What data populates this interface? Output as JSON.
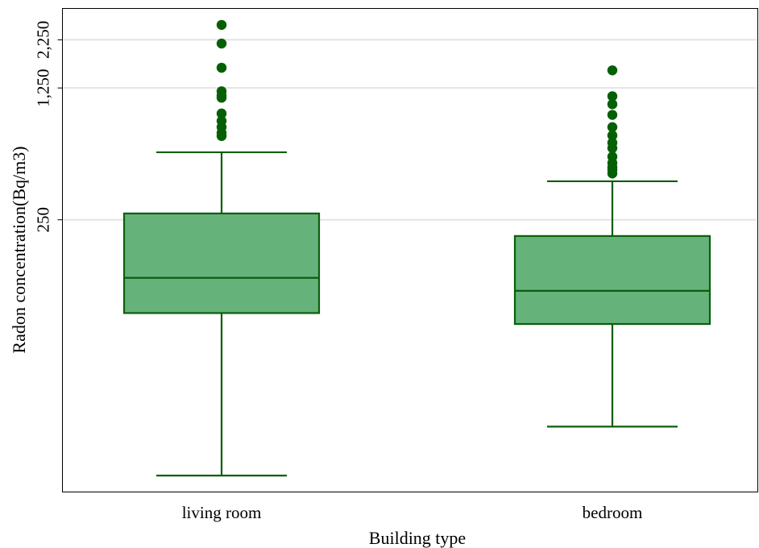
{
  "chart_data": {
    "type": "boxplot",
    "xlabel": "Building type",
    "ylabel": "Radon concentration(Bq/m3)",
    "yscale": "log",
    "ylim": [
      9,
      3300
    ],
    "yticks": [
      {
        "value": 250,
        "label": "250"
      },
      {
        "value": 1250,
        "label": "1,250"
      },
      {
        "value": 2250,
        "label": "2,250"
      }
    ],
    "grid": true,
    "colors": {
      "box_fill": "#66b27b",
      "box_stroke": "#0b5e0b",
      "outlier": "#056005",
      "gridline": "#e4e4e4"
    },
    "categories": [
      "living room",
      "bedroom"
    ],
    "boxes": [
      {
        "category": "living room",
        "whisker_low": 11,
        "q1": 80,
        "median": 123,
        "q3": 270,
        "whisker_high": 570,
        "outliers": [
          695,
          722,
          775,
          835,
          915,
          1110,
          1140,
          1200,
          1600,
          2150,
          2700
        ]
      },
      {
        "category": "bedroom",
        "whisker_low": 20,
        "q1": 70,
        "median": 105,
        "q3": 205,
        "whisker_high": 400,
        "outliers": [
          440,
          460,
          475,
          500,
          540,
          600,
          640,
          700,
          775,
          900,
          1025,
          1130,
          1550
        ]
      }
    ]
  }
}
